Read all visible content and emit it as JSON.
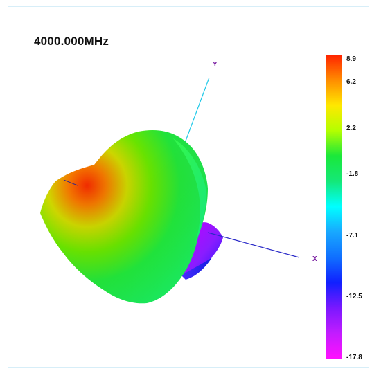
{
  "title": "4000.000MHz",
  "axes": {
    "x_label": "X",
    "y_label": "Y"
  },
  "colorbar": {
    "ticks": [
      {
        "value": 8.9,
        "label": "8.9"
      },
      {
        "value": 6.2,
        "label": "6.2"
      },
      {
        "value": 2.2,
        "label": "2.2"
      },
      {
        "value": -1.8,
        "label": "-1.8"
      },
      {
        "value": -7.1,
        "label": "-7.1"
      },
      {
        "value": -12.5,
        "label": "-12.5"
      },
      {
        "value": -17.8,
        "label": "-17.8"
      }
    ],
    "gradient": [
      "#ff2200",
      "#ff8c00",
      "#ffe800",
      "#b4ff00",
      "#1ae83a",
      "#14e878",
      "#00ffff",
      "#18a8ff",
      "#1070ff",
      "#1020ff",
      "#7a18ff",
      "#c21cff",
      "#ff10ff"
    ]
  },
  "colors": {
    "axis_y": "#1cc8e8",
    "axis_x": "#2a2ac8",
    "label": "#7a1fa2"
  }
}
